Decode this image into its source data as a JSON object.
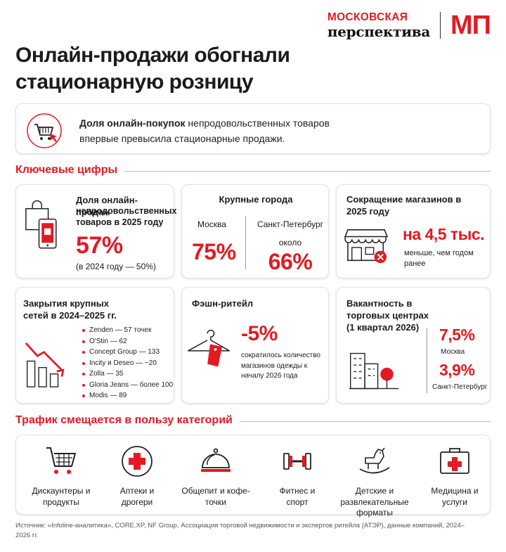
{
  "brand": {
    "line1": "МОСКОВСКАЯ",
    "line2": "перспектива",
    "mark": "МП",
    "color": "#e21a22"
  },
  "title": "Онлайн-продажи обогнали стационарную розницу",
  "intro": {
    "bold": "Доля онлайн-покупок",
    "rest": " непродовольственных товаров впервые превысила стационарные продажи.",
    "icon": "shopping-cart-cursor-icon"
  },
  "sections": {
    "key_figures": "Ключевые цифры",
    "traffic": "Трафик смещается в пользу категорий"
  },
  "cards": {
    "online_share": {
      "title": "Доля онлайн-продаж",
      "subtitle": "непродовольственных товаров в 2025 году",
      "value": "57%",
      "note": "(в 2024 году — 50%)"
    },
    "cities": {
      "title": "Крупные города",
      "moscow_label": "Москва",
      "moscow_value": "75%",
      "spb_label": "Санкт-Петербург",
      "spb_prefix": "около",
      "spb_value": "66%"
    },
    "stores": {
      "title": "Сокращение магазинов в 2025 году",
      "value": "на 4,5 тыс.",
      "note": "меньше, чем годом ранее"
    },
    "closures": {
      "title": "Закрытия крупных сетей в 2024–2025 гг.",
      "chains": [
        "Zenden — 57 точек",
        "O'Stin — 62",
        "Concept Group — 133",
        "Incity и Deseo — ~20",
        "Zolla — 35",
        "Gloria Jeans — более 100",
        "Modis — 89"
      ]
    },
    "fashion": {
      "title": "Фэшн-ритейл",
      "value": "-5%",
      "note": "сократилось количество магазинов одежды к началу 2026 года"
    },
    "vacancy": {
      "title": "Вакантность в торговых центрах (1 квартал 2026)",
      "moscow_value": "7,5%",
      "moscow_label": "Москва",
      "spb_value": "3,9%",
      "spb_label": "Санкт-Петербург"
    }
  },
  "categories": [
    {
      "label": "Дискаунтеры и продукты",
      "icon": "shopping-cart-icon"
    },
    {
      "label": "Аптеки и дрогери",
      "icon": "pharmacy-cross-icon"
    },
    {
      "label": "Общепит и кофе-точки",
      "icon": "food-cloche-icon"
    },
    {
      "label": "Фитнес и спорт",
      "icon": "dumbbell-icon"
    },
    {
      "label": "Детские и развлекательные форматы",
      "icon": "rocking-horse-icon"
    },
    {
      "label": "Медицина и услуги",
      "icon": "medical-kit-icon"
    }
  ],
  "source": "Источник: «Infoline-аналитика», CORE.XP, NF Group, Ассоциация торговой недвижимости и экспертов ритейла (АТЭР), данные компаний, 2024–2026 гг."
}
